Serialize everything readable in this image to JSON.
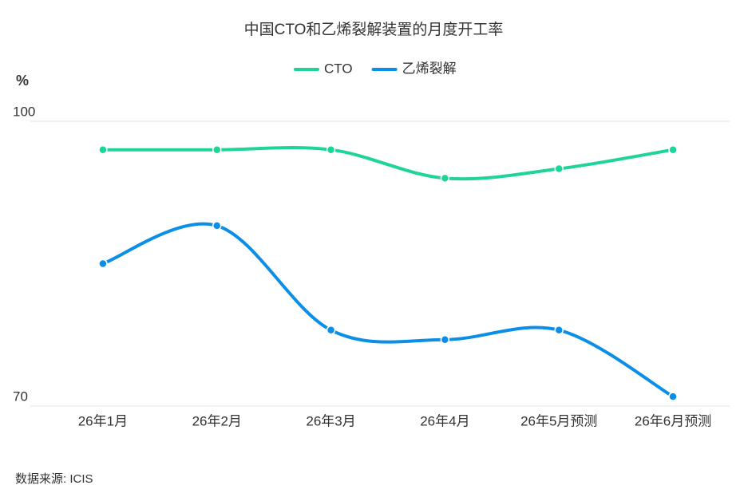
{
  "chart_data": {
    "type": "line",
    "title": "中国CTO和乙烯裂解装置的月度开工率",
    "y_label": "%",
    "categories": [
      "26年1月",
      "26年2月",
      "26年3月",
      "26年4月",
      "26年5月预测",
      "26年6月预测"
    ],
    "series": [
      {
        "name": "CTO",
        "color": "#1ed49a",
        "values": [
          97,
          97,
          97,
          94,
          95,
          97
        ]
      },
      {
        "name": "乙烯裂解",
        "color": "#0b8ee8",
        "values": [
          85,
          89,
          78,
          77,
          78,
          71
        ]
      }
    ],
    "ylim": [
      70,
      100
    ],
    "yticks": [
      70,
      100
    ],
    "grid": true,
    "legend": "top",
    "source": "数据来源: ICIS"
  }
}
